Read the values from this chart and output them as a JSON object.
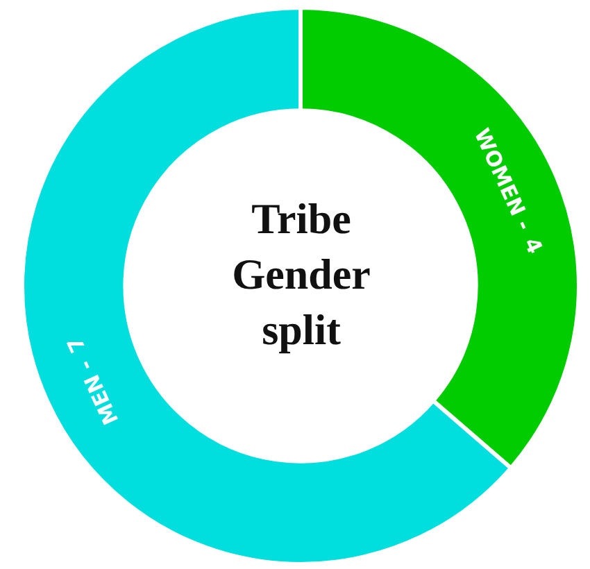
{
  "chart_data": {
    "type": "donut",
    "title": "Tribe Gender split",
    "categories": [
      "WOMEN -",
      "MEN -"
    ],
    "values": [
      4,
      7
    ],
    "colors": [
      "#00cc00",
      "#00dede"
    ],
    "data_labels": true
  }
}
